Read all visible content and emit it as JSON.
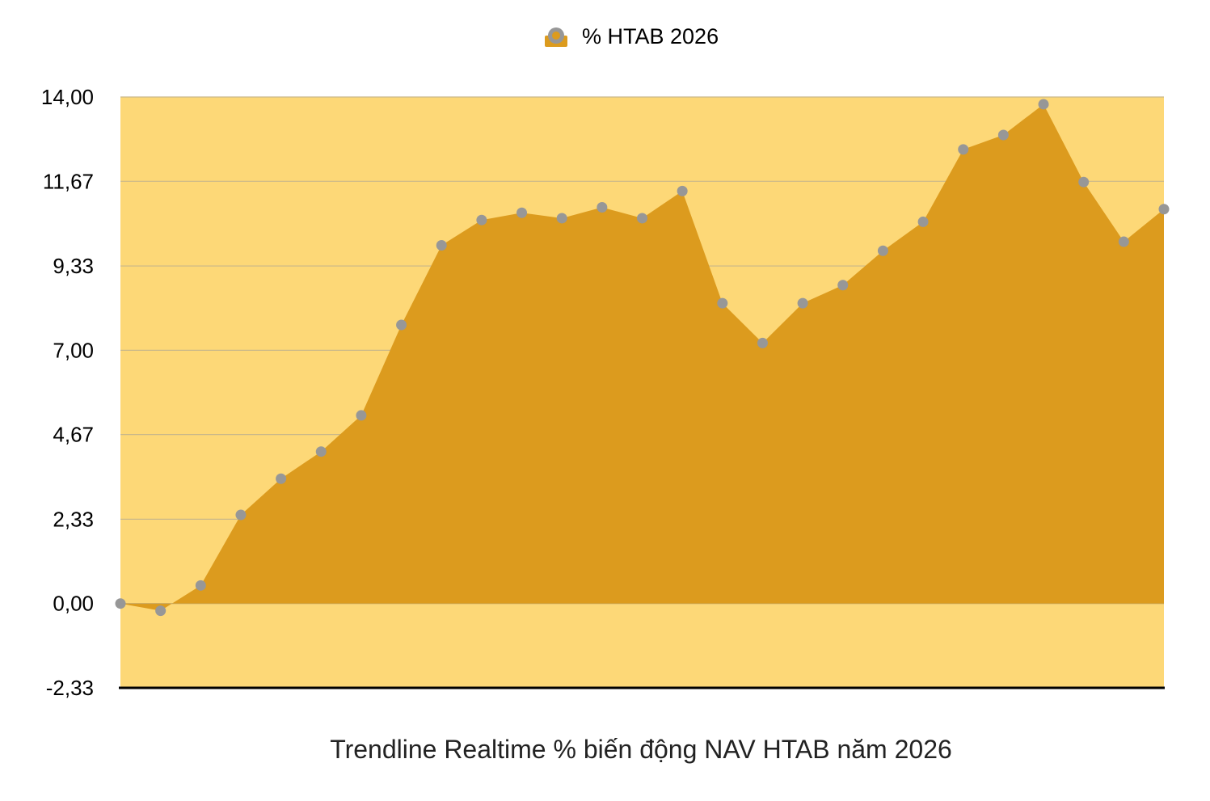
{
  "chart_data": {
    "type": "area",
    "title": "Trendline Realtime % biến động NAV HTAB năm 2026",
    "xlabel": "",
    "ylabel": "",
    "legend": {
      "position": "top-center",
      "entries": [
        "% HTAB 2026"
      ]
    },
    "ylim": [
      -2.33,
      14.0
    ],
    "yticks": [
      "14,00",
      "11,67",
      "9,33",
      "7,00",
      "4,67",
      "2,33",
      "0,00",
      "-2,33"
    ],
    "ytick_values": [
      14.0,
      11.67,
      9.33,
      7.0,
      4.67,
      2.33,
      0.0,
      -2.33
    ],
    "grid": true,
    "colors": {
      "plot_background": "#fdd877",
      "area_fill": "#dc9b1e",
      "marker": "#979797",
      "gridline": "#c9b88a",
      "baseline_axis": "#000000"
    },
    "series": [
      {
        "name": "% HTAB 2026",
        "values": [
          0.0,
          -0.2,
          0.5,
          2.45,
          3.45,
          4.2,
          5.2,
          7.7,
          9.9,
          10.6,
          10.8,
          10.65,
          10.95,
          10.65,
          11.4,
          8.3,
          7.2,
          8.3,
          8.8,
          9.75,
          10.55,
          12.55,
          12.95,
          13.8,
          11.65,
          10.0,
          10.9
        ]
      }
    ]
  }
}
